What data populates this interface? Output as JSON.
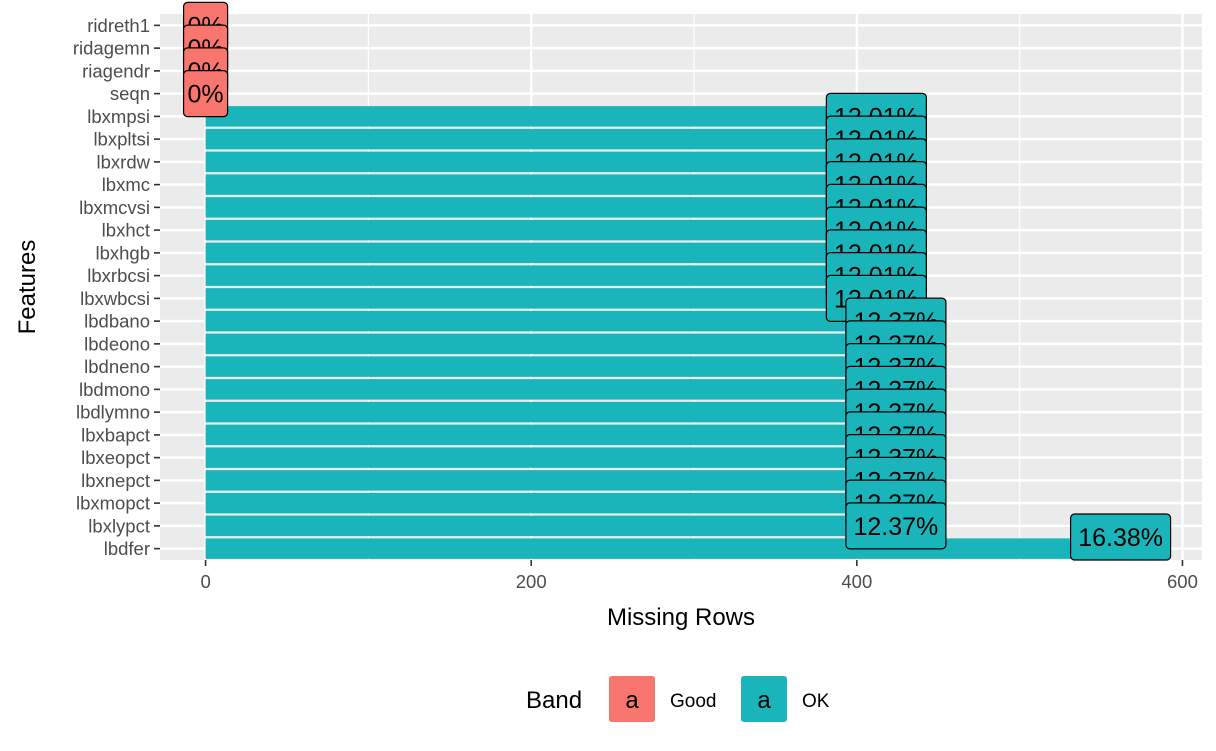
{
  "chart_data": {
    "type": "bar",
    "orientation": "horizontal",
    "xlabel": "Missing Rows",
    "ylabel": "Features",
    "xlim": [
      -28,
      612
    ],
    "xticks": [
      0,
      200,
      400,
      600
    ],
    "grid": true,
    "legend_position": "bottom",
    "legend": {
      "title": "Band",
      "key_glyph": "a",
      "entries": [
        {
          "label": "Good",
          "color": "#F8766D"
        },
        {
          "label": "OK",
          "color": "#19B5BA"
        }
      ]
    },
    "categories": [
      "ridreth1",
      "ridagemn",
      "riagendr",
      "seqn",
      "lbxmpsi",
      "lbxpltsi",
      "lbxrdw",
      "lbxmc",
      "lbxmcvsi",
      "lbxhct",
      "lbxhgb",
      "lbxrbcsi",
      "lbxwbcsi",
      "lbdbano",
      "lbdeono",
      "lbdneno",
      "lbdmono",
      "lbdlymno",
      "lbxbapct",
      "lbxeopct",
      "lbxnepct",
      "lbxmopct",
      "lbxlypct",
      "lbdfer"
    ],
    "values": [
      0,
      0,
      0,
      0,
      412,
      412,
      412,
      412,
      412,
      412,
      412,
      412,
      412,
      424,
      424,
      424,
      424,
      424,
      424,
      424,
      424,
      424,
      424,
      562
    ],
    "labels": [
      "0%",
      "0%",
      "0%",
      "0%",
      "12.01%",
      "12.01%",
      "12.01%",
      "12.01%",
      "12.01%",
      "12.01%",
      "12.01%",
      "12.01%",
      "12.01%",
      "12.37%",
      "12.37%",
      "12.37%",
      "12.37%",
      "12.37%",
      "12.37%",
      "12.37%",
      "12.37%",
      "12.37%",
      "12.37%",
      "16.38%"
    ],
    "bands": [
      "Good",
      "Good",
      "Good",
      "Good",
      "OK",
      "OK",
      "OK",
      "OK",
      "OK",
      "OK",
      "OK",
      "OK",
      "OK",
      "OK",
      "OK",
      "OK",
      "OK",
      "OK",
      "OK",
      "OK",
      "OK",
      "OK",
      "OK",
      "OK"
    ]
  }
}
